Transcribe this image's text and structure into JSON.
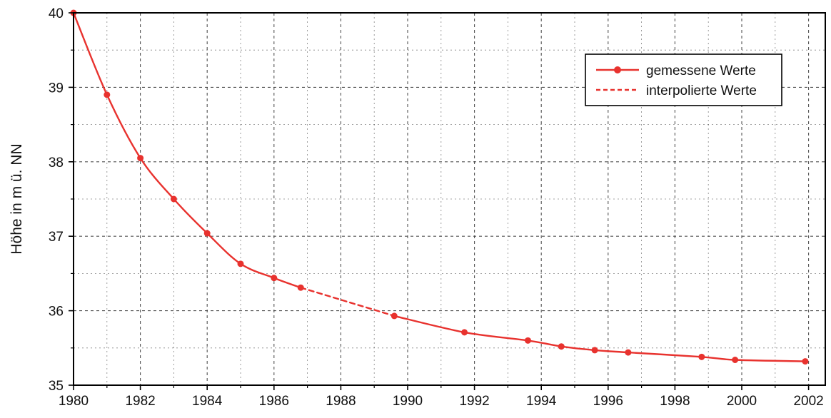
{
  "chart_data": {
    "type": "line",
    "ylabel": "Höhe in m ü. NN",
    "xlim": [
      1980,
      2002.5
    ],
    "ylim": [
      35,
      40
    ],
    "x_ticks": [
      "1980",
      "1982",
      "1984",
      "1986",
      "1988",
      "1990",
      "1992",
      "1994",
      "1996",
      "1998",
      "2000",
      "2002"
    ],
    "y_ticks": [
      "35",
      "36",
      "37",
      "38",
      "39",
      "40"
    ],
    "grid": true,
    "legend_position": "top-right",
    "series": [
      {
        "name": "gemessene Werte",
        "style": "solid-with-markers",
        "color": "#e8322e",
        "points": [
          {
            "x": 1980,
            "y": 40.0
          },
          {
            "x": 1981,
            "y": 38.9
          },
          {
            "x": 1982,
            "y": 38.05
          },
          {
            "x": 1983,
            "y": 37.5
          },
          {
            "x": 1984,
            "y": 37.04
          },
          {
            "x": 1985,
            "y": 36.63
          },
          {
            "x": 1986,
            "y": 36.44
          },
          {
            "x": 1986.8,
            "y": 36.31
          }
        ]
      },
      {
        "name": "interpolierte Werte",
        "style": "dashed",
        "color": "#e8322e",
        "points": [
          {
            "x": 1986.8,
            "y": 36.31
          },
          {
            "x": 1989.6,
            "y": 35.93
          }
        ]
      },
      {
        "name": "gemessene Werte",
        "style": "solid-with-markers",
        "color": "#e8322e",
        "points": [
          {
            "x": 1989.6,
            "y": 35.93
          },
          {
            "x": 1991.7,
            "y": 35.71
          },
          {
            "x": 1993.6,
            "y": 35.6
          },
          {
            "x": 1994.6,
            "y": 35.52
          },
          {
            "x": 1995.6,
            "y": 35.47
          },
          {
            "x": 1996.6,
            "y": 35.44
          },
          {
            "x": 1998.8,
            "y": 35.38
          },
          {
            "x": 1999.8,
            "y": 35.34
          },
          {
            "x": 2001.9,
            "y": 35.32
          }
        ]
      }
    ]
  },
  "legend": {
    "measured_label": "gemessene Werte",
    "interpolated_label": "interpolierte Werte"
  },
  "colors": {
    "line": "#e8322e",
    "grid": "#333333",
    "axis": "#000000"
  }
}
